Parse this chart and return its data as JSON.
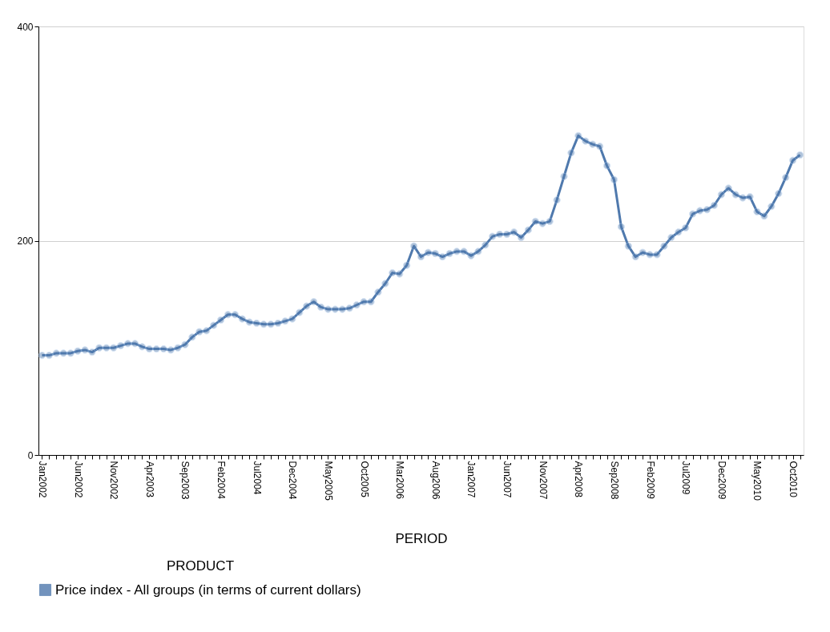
{
  "chart_data": {
    "type": "line",
    "categories": [
      "Jan2002",
      null,
      null,
      null,
      null,
      "Jun2002",
      null,
      null,
      null,
      null,
      "Nov2002",
      null,
      null,
      null,
      null,
      "Apr2003",
      null,
      null,
      null,
      null,
      "Sep2003",
      null,
      null,
      null,
      null,
      "Feb2004",
      null,
      null,
      null,
      null,
      "Jul2004",
      null,
      null,
      null,
      null,
      "Dec2004",
      null,
      null,
      null,
      null,
      "May2005",
      null,
      null,
      null,
      null,
      "Oct2005",
      null,
      null,
      null,
      null,
      "Mar2006",
      null,
      null,
      null,
      null,
      "Aug2006",
      null,
      null,
      null,
      null,
      "Jan2007",
      null,
      null,
      null,
      null,
      "Jun2007",
      null,
      null,
      null,
      null,
      "Nov2007",
      null,
      null,
      null,
      null,
      "Apr2008",
      null,
      null,
      null,
      null,
      "Sep2008",
      null,
      null,
      null,
      null,
      "Feb2009",
      null,
      null,
      null,
      null,
      "Jul2009",
      null,
      null,
      null,
      null,
      "Dec2009",
      null,
      null,
      null,
      null,
      "May2010",
      null,
      null,
      null,
      null,
      "Oct2010",
      null
    ],
    "series": [
      {
        "name": "Price index - All groups (in terms of current dollars)",
        "color": "#4f79ad",
        "values": [
          93,
          93,
          95,
          95,
          95,
          97,
          98,
          96,
          100,
          100,
          100,
          102,
          104,
          104,
          101,
          99,
          99,
          99,
          98,
          100,
          103,
          110,
          115,
          116,
          121,
          126,
          131,
          131,
          127,
          124,
          123,
          122,
          122,
          123,
          125,
          127,
          133,
          139,
          143,
          138,
          136,
          136,
          136,
          137,
          140,
          143,
          143,
          152,
          160,
          170,
          169,
          177,
          195,
          185,
          189,
          188,
          185,
          188,
          190,
          190,
          186,
          190,
          196,
          204,
          206,
          206,
          208,
          203,
          210,
          218,
          216,
          218,
          238,
          260,
          282,
          298,
          293,
          290,
          288,
          270,
          257,
          213,
          195,
          185,
          189,
          187,
          187,
          195,
          203,
          208,
          212,
          225,
          228,
          229,
          233,
          243,
          249,
          243,
          240,
          241,
          227,
          223,
          232,
          244,
          259,
          275,
          280
        ]
      }
    ],
    "xlabel": "PERIOD",
    "legend_title": "PRODUCT",
    "legend": "bottom",
    "ylim": [
      0,
      400
    ],
    "yticks": [
      0,
      200,
      400
    ],
    "grid": "y",
    "marker": "circle",
    "line_style": "solid"
  }
}
